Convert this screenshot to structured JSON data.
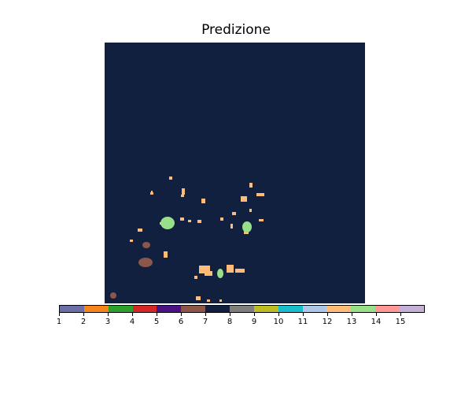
{
  "title": "Predizione",
  "colorbar": {
    "colors": [
      "#6b6fa6",
      "#f58518",
      "#2ca02c",
      "#d62728",
      "#4b1283",
      "#8c564b",
      "#10203e",
      "#7f7f7f",
      "#bcbd22",
      "#17becf",
      "#aec7e8",
      "#ffbb78",
      "#98df8a",
      "#ff9896",
      "#c5b0d5"
    ],
    "tick_labels": [
      "1",
      "2",
      "3",
      "4",
      "5",
      "6",
      "7",
      "8",
      "9",
      "10",
      "11",
      "12",
      "13",
      "14",
      "15"
    ]
  },
  "map": {
    "background": "#122040",
    "class_colors": {
      "13": "#ffbb78",
      "14": "#98df8a",
      "7": "#8c564b"
    }
  }
}
